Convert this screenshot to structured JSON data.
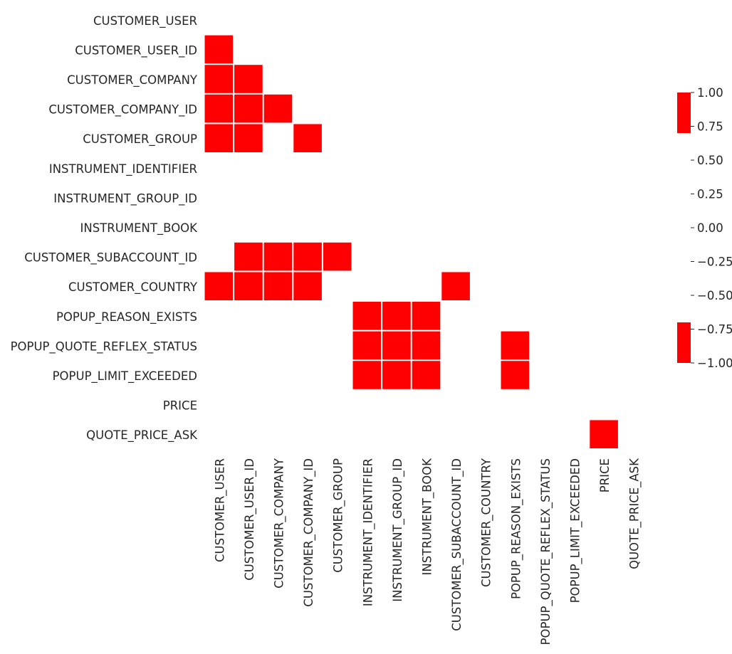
{
  "chart_data": {
    "type": "heatmap",
    "title": "",
    "xlabel": "",
    "ylabel": "",
    "variables": [
      "CUSTOMER_USER",
      "CUSTOMER_USER_ID",
      "CUSTOMER_COMPANY",
      "CUSTOMER_COMPANY_ID",
      "CUSTOMER_GROUP",
      "INSTRUMENT_IDENTIFIER",
      "INSTRUMENT_GROUP_ID",
      "INSTRUMENT_BOOK",
      "CUSTOMER_SUBACCOUNT_ID",
      "CUSTOMER_COUNTRY",
      "POPUP_REASON_EXISTS",
      "POPUP_QUOTE_REFLEX_STATUS",
      "POPUP_LIMIT_EXCEEDED",
      "PRICE",
      "QUOTE_PRICE_ASK"
    ],
    "mask": "upper-triangle-and-diagonal",
    "cells_shown": [
      {
        "row": "CUSTOMER_USER_ID",
        "col": "CUSTOMER_USER",
        "value": 1.0
      },
      {
        "row": "CUSTOMER_COMPANY",
        "col": "CUSTOMER_USER",
        "value": 1.0
      },
      {
        "row": "CUSTOMER_COMPANY",
        "col": "CUSTOMER_USER_ID",
        "value": 1.0
      },
      {
        "row": "CUSTOMER_COMPANY_ID",
        "col": "CUSTOMER_USER",
        "value": 1.0
      },
      {
        "row": "CUSTOMER_COMPANY_ID",
        "col": "CUSTOMER_USER_ID",
        "value": 1.0
      },
      {
        "row": "CUSTOMER_COMPANY_ID",
        "col": "CUSTOMER_COMPANY",
        "value": 1.0
      },
      {
        "row": "CUSTOMER_GROUP",
        "col": "CUSTOMER_USER",
        "value": 1.0
      },
      {
        "row": "CUSTOMER_GROUP",
        "col": "CUSTOMER_USER_ID",
        "value": 1.0
      },
      {
        "row": "CUSTOMER_GROUP",
        "col": "CUSTOMER_COMPANY_ID",
        "value": 1.0
      },
      {
        "row": "CUSTOMER_SUBACCOUNT_ID",
        "col": "CUSTOMER_USER_ID",
        "value": 1.0
      },
      {
        "row": "CUSTOMER_SUBACCOUNT_ID",
        "col": "CUSTOMER_COMPANY",
        "value": 1.0
      },
      {
        "row": "CUSTOMER_SUBACCOUNT_ID",
        "col": "CUSTOMER_COMPANY_ID",
        "value": 1.0
      },
      {
        "row": "CUSTOMER_SUBACCOUNT_ID",
        "col": "CUSTOMER_GROUP",
        "value": 1.0
      },
      {
        "row": "CUSTOMER_COUNTRY",
        "col": "CUSTOMER_USER",
        "value": 1.0
      },
      {
        "row": "CUSTOMER_COUNTRY",
        "col": "CUSTOMER_USER_ID",
        "value": 1.0
      },
      {
        "row": "CUSTOMER_COUNTRY",
        "col": "CUSTOMER_COMPANY",
        "value": 1.0
      },
      {
        "row": "CUSTOMER_COUNTRY",
        "col": "CUSTOMER_COMPANY_ID",
        "value": 1.0
      },
      {
        "row": "CUSTOMER_COUNTRY",
        "col": "CUSTOMER_SUBACCOUNT_ID",
        "value": 1.0
      },
      {
        "row": "POPUP_REASON_EXISTS",
        "col": "INSTRUMENT_IDENTIFIER",
        "value": 1.0
      },
      {
        "row": "POPUP_REASON_EXISTS",
        "col": "INSTRUMENT_GROUP_ID",
        "value": 1.0
      },
      {
        "row": "POPUP_REASON_EXISTS",
        "col": "INSTRUMENT_BOOK",
        "value": 1.0
      },
      {
        "row": "POPUP_QUOTE_REFLEX_STATUS",
        "col": "INSTRUMENT_IDENTIFIER",
        "value": 1.0
      },
      {
        "row": "POPUP_QUOTE_REFLEX_STATUS",
        "col": "INSTRUMENT_GROUP_ID",
        "value": 1.0
      },
      {
        "row": "POPUP_QUOTE_REFLEX_STATUS",
        "col": "INSTRUMENT_BOOK",
        "value": 1.0
      },
      {
        "row": "POPUP_QUOTE_REFLEX_STATUS",
        "col": "POPUP_REASON_EXISTS",
        "value": 1.0
      },
      {
        "row": "POPUP_LIMIT_EXCEEDED",
        "col": "INSTRUMENT_IDENTIFIER",
        "value": 1.0
      },
      {
        "row": "POPUP_LIMIT_EXCEEDED",
        "col": "INSTRUMENT_GROUP_ID",
        "value": 1.0
      },
      {
        "row": "POPUP_LIMIT_EXCEEDED",
        "col": "INSTRUMENT_BOOK",
        "value": 1.0
      },
      {
        "row": "POPUP_LIMIT_EXCEEDED",
        "col": "POPUP_REASON_EXISTS",
        "value": 1.0
      },
      {
        "row": "QUOTE_PRICE_ASK",
        "col": "PRICE",
        "value": 1.0
      }
    ],
    "colorbar": {
      "range": [
        -1.0,
        1.0
      ],
      "ticks": [
        "1.00",
        "0.75",
        "0.50",
        "0.25",
        "0.00",
        "−0.25",
        "−0.50",
        "−0.75",
        "−1.00"
      ],
      "colored_bands": [
        [
          0.7,
          1.0
        ],
        [
          -1.0,
          -0.7
        ]
      ]
    },
    "cell_color": "#ff0000",
    "grid": false,
    "legend": "colorbar-right"
  }
}
